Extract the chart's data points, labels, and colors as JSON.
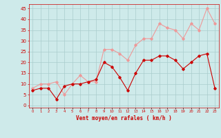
{
  "x": [
    0,
    1,
    2,
    3,
    4,
    5,
    6,
    7,
    8,
    9,
    10,
    11,
    12,
    13,
    14,
    15,
    16,
    17,
    18,
    19,
    20,
    21,
    22,
    23
  ],
  "wind_avg": [
    7,
    8,
    8,
    3,
    9,
    10,
    10,
    11,
    12,
    20,
    18,
    13,
    7,
    15,
    21,
    21,
    23,
    23,
    21,
    17,
    20,
    23,
    24,
    8
  ],
  "wind_gust": [
    8,
    10,
    10,
    11,
    5,
    10,
    14,
    11,
    11,
    26,
    26,
    24,
    21,
    28,
    31,
    31,
    38,
    36,
    35,
    31,
    38,
    35,
    45,
    38
  ],
  "bg_color": "#ceeaea",
  "grid_color": "#aacccc",
  "avg_color": "#cc0000",
  "gust_color": "#ee9999",
  "xlabel": "Vent moyen/en rafales ( km/h )",
  "xlabel_color": "#cc0000",
  "tick_color": "#cc0000",
  "ylabel_ticks": [
    0,
    5,
    10,
    15,
    20,
    25,
    30,
    35,
    40,
    45
  ],
  "ylim": [
    -1,
    47
  ],
  "xlim": [
    -0.5,
    23.5
  ]
}
